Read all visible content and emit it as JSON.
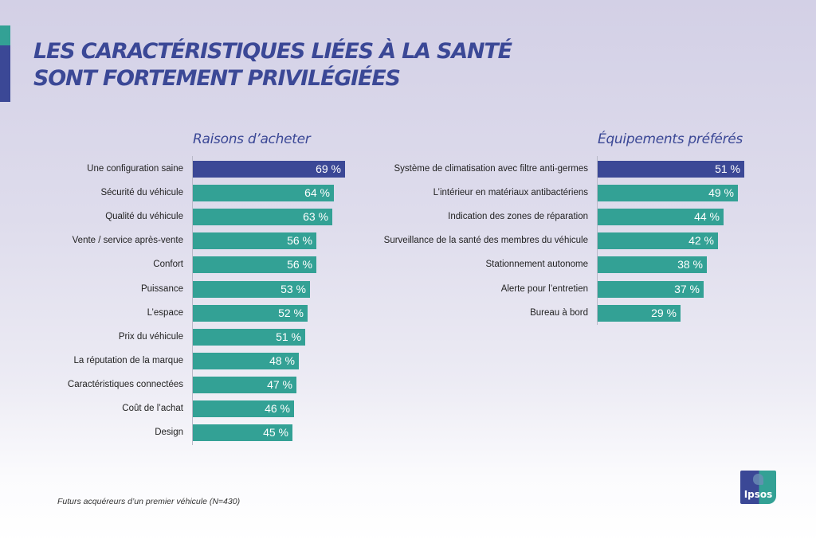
{
  "header": {
    "title_line1": "LES CARACTÉRISTIQUES LIÉES À LA SANTÉ",
    "title_line2": "SONT FORTEMENT PRIVILÉGIÉES"
  },
  "colors": {
    "navy": "#3b4896",
    "teal": "#33a195"
  },
  "chart_data": [
    {
      "type": "bar",
      "orientation": "horizontal",
      "title": "Raisons d’acheter",
      "categories": [
        "Une configuration saine",
        "Sécurité du véhicule",
        "Qualité du véhicule",
        "Vente / service après-vente",
        "Confort",
        "Puissance",
        "L’espace",
        "Prix du véhicule",
        "La réputation de la marque",
        "Caractéristiques connectées",
        "Coût de l’achat",
        "Design"
      ],
      "values": [
        69,
        64,
        63,
        56,
        56,
        53,
        52,
        51,
        48,
        47,
        46,
        45
      ],
      "value_labels": [
        "69 %",
        "64 %",
        "63 %",
        "56 %",
        "56 %",
        "53 %",
        "52 %",
        "51 %",
        "48 %",
        "47 %",
        "46 %",
        "45 %"
      ],
      "highlighted_index": 0,
      "unit": "%",
      "xlabel": "",
      "ylabel": "",
      "grid": false
    },
    {
      "type": "bar",
      "orientation": "horizontal",
      "title": "Équipements préférés",
      "categories": [
        "Système de climatisation avec filtre anti-germes",
        "L’intérieur en matériaux antibactériens",
        "Indication des zones de réparation",
        "Surveillance de la santé des membres du véhicule",
        "Stationnement autonome",
        "Alerte pour l’entretien",
        "Bureau à bord"
      ],
      "values": [
        51,
        49,
        44,
        42,
        38,
        37,
        29
      ],
      "value_labels": [
        "51 %",
        "49 %",
        "44 %",
        "42 %",
        "38 %",
        "37 %",
        "29 %"
      ],
      "highlighted_index": 0,
      "unit": "%",
      "xlabel": "",
      "ylabel": "",
      "grid": false
    }
  ],
  "footnote": "Futurs acquéreurs d’un premier véhicule (N=430)",
  "logo": {
    "text": "Ipsos"
  }
}
